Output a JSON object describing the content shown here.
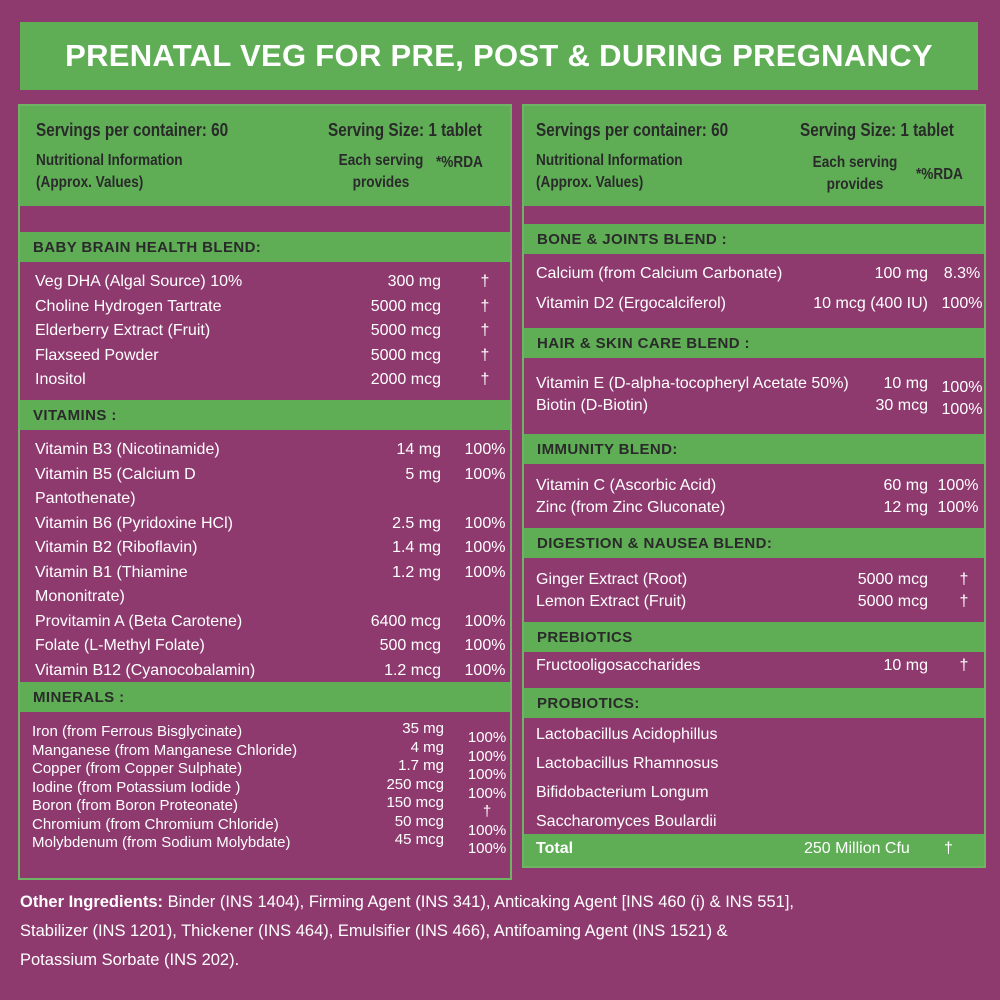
{
  "title": "PRENATAL VEG FOR PRE, POST & DURING PREGNANCY",
  "header": {
    "servings": "Servings per container: 60",
    "serving_size": "Serving Size:  1 tablet",
    "nutri_line1": "Nutritional Information",
    "nutri_line2": "(Approx. Values)",
    "each_line1": "Each serving",
    "each_line2": "provides",
    "rda": "*%RDA"
  },
  "left": {
    "brain": {
      "title": "BABY BRAIN HEALTH BLEND:",
      "rows": [
        {
          "name": "Veg DHA (Algal Source) 10%",
          "amount": "300 mg",
          "rda": "†"
        },
        {
          "name": "Choline Hydrogen Tartrate",
          "amount": "5000 mcg",
          "rda": "†"
        },
        {
          "name": "Elderberry Extract (Fruit)",
          "amount": "5000 mcg",
          "rda": "†"
        },
        {
          "name": "Flaxseed Powder",
          "amount": "5000 mcg",
          "rda": "†"
        },
        {
          "name": "Inositol",
          "amount": "2000 mcg",
          "rda": "†"
        }
      ]
    },
    "vitamins": {
      "title": "VITAMINS :",
      "rows": [
        {
          "name": "Vitamin B3 (Nicotinamide)",
          "amount": "14 mg",
          "rda": "100%"
        },
        {
          "name": "Vitamin B5 (Calcium D",
          "name2": "Pantothenate)",
          "amount": "5 mg",
          "rda": "100%"
        },
        {
          "name": "Vitamin B6 (Pyridoxine HCl)",
          "amount": "2.5 mg",
          "rda": "100%"
        },
        {
          "name": "Vitamin B2 (Riboflavin)",
          "amount": "1.4 mg",
          "rda": "100%"
        },
        {
          "name": "Vitamin B1 (Thiamine",
          "name2": "Mononitrate)",
          "amount": "1.2 mg",
          "rda": "100%"
        },
        {
          "name": "Provitamin A (Beta Carotene)",
          "amount": "6400 mcg",
          "rda": "100%"
        },
        {
          "name": "Folate (L-Methyl Folate)",
          "amount": "500 mcg",
          "rda": "100%"
        },
        {
          "name": "Vitamin B12 (Cyanocobalamin)",
          "amount": "1.2 mcg",
          "rda": "100%"
        }
      ]
    },
    "minerals": {
      "title": "MINERALS :",
      "rows": [
        {
          "name": "Iron (from Ferrous Bisglycinate)",
          "amount": "35 mg",
          "rda": "100%"
        },
        {
          "name": "Manganese (from Manganese Chloride)",
          "amount": "4 mg",
          "rda": "100%"
        },
        {
          "name": "Copper (from Copper Sulphate)",
          "amount": "1.7 mg",
          "rda": "100%"
        },
        {
          "name": "Iodine (from Potassium Iodide )",
          "amount": "250 mcg",
          "rda": "100%"
        },
        {
          "name": "Boron (from Boron Proteonate)",
          "amount": "150 mcg",
          "rda": "†"
        },
        {
          "name": "Chromium (from Chromium Chloride)",
          "amount": "50 mcg",
          "rda": "100%"
        },
        {
          "name": "Molybdenum (from Sodium Molybdate)",
          "amount": "45 mcg",
          "rda": "100%"
        }
      ]
    }
  },
  "right": {
    "bone": {
      "title": "BONE & JOINTS BLEND :",
      "rows": [
        {
          "name": "Calcium (from Calcium Carbonate)",
          "amount": "100 mg",
          "rda": "8.3%"
        },
        {
          "name": "Vitamin D2 (Ergocalciferol)",
          "amount": "10 mcg (400 IU)",
          "rda": "100%"
        }
      ]
    },
    "hair": {
      "title": "HAIR & SKIN CARE BLEND :",
      "rows": [
        {
          "name": "Vitamin E (D-alpha-tocopheryl Acetate 50%)",
          "amount": "10 mg",
          "rda": "100%"
        },
        {
          "name": "Biotin (D-Biotin)",
          "amount": "30 mcg",
          "rda": "100%"
        }
      ]
    },
    "immunity": {
      "title": "IMMUNITY BLEND:",
      "rows": [
        {
          "name": "Vitamin C (Ascorbic Acid)",
          "amount": "60 mg",
          "rda": "100%"
        },
        {
          "name": "Zinc (from Zinc Gluconate)",
          "amount": "12 mg",
          "rda": "100%"
        }
      ]
    },
    "digestion": {
      "title": "DIGESTION & NAUSEA BLEND:",
      "rows": [
        {
          "name": "Ginger Extract (Root)",
          "amount": "5000 mcg",
          "rda": "†"
        },
        {
          "name": "Lemon Extract (Fruit)",
          "amount": "5000 mcg",
          "rda": "†"
        }
      ]
    },
    "prebiotics": {
      "title": "PREBIOTICS",
      "rows": [
        {
          "name": "Fructooligosaccharides",
          "amount": "10 mg",
          "rda": "†"
        }
      ]
    },
    "probiotics": {
      "title": "PROBIOTICS:",
      "items": [
        "Lactobacillus Acidophillus",
        "Lactobacillus Rhamnosus",
        "Bifidobacterium Longum",
        "Saccharomyces Boulardii"
      ]
    },
    "total": {
      "label": "Total",
      "amount": "250 Million Cfu",
      "rda": "†"
    }
  },
  "footer": {
    "label": "Other Ingredients:",
    "line1": " Binder (INS 1404), Firming Agent (INS 341), Anticaking Agent [INS 460 (i) & INS 551],",
    "line2": "Stabilizer (INS 1201), Thickener (INS 464), Emulsifier (INS 466), Antifoaming Agent (INS 1521) &",
    "line3": "Potassium Sorbate (INS 202)."
  },
  "colors": {
    "background": "#8e3a6f",
    "green": "#5fae56",
    "border": "#6fb464"
  }
}
